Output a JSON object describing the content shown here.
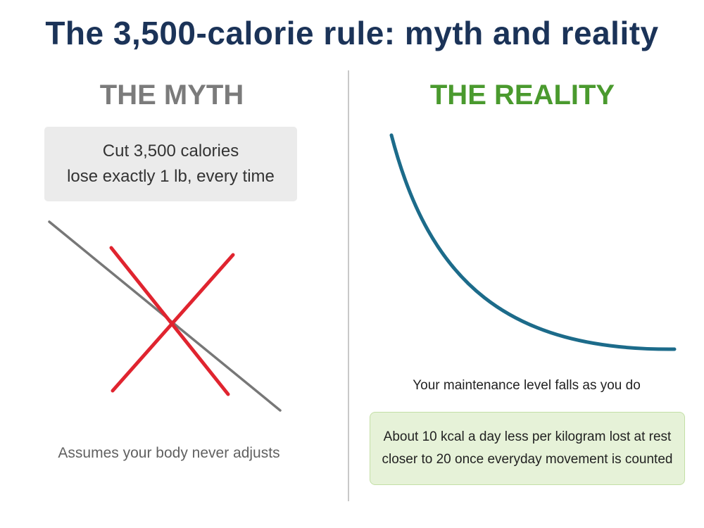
{
  "title": "The 3,500-calorie rule: myth and reality",
  "myth": {
    "heading": "THE MYTH",
    "box_line1": "Cut 3,500 calories",
    "box_line2": "lose exactly 1 lb, every time",
    "caption": "Assumes your body never adjusts"
  },
  "reality": {
    "heading": "THE REALITY",
    "caption": "Your maintenance level falls as you do",
    "box_line1": "About 10 kcal a day less per kilogram lost at rest",
    "box_line2": "closer to 20 once everyday movement is counted"
  },
  "colors": {
    "title": "#1b3358",
    "myth_heading": "#7b7b7b",
    "reality_heading": "#4a9a2e",
    "myth_line": "#777777",
    "cross": "#e0242f",
    "reality_curve": "#1c6b8a"
  }
}
